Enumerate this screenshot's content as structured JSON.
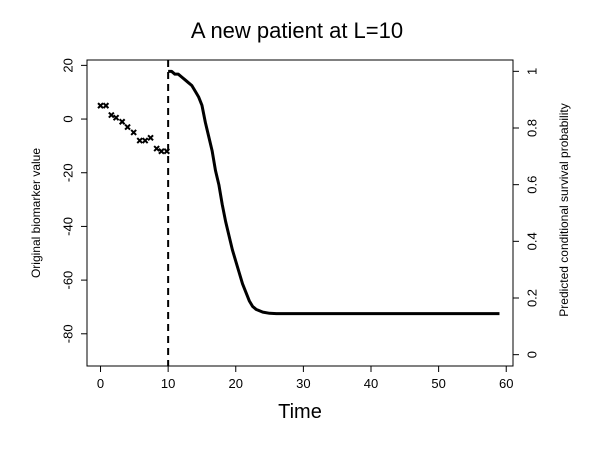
{
  "chart_data": {
    "type": "scatter",
    "title": "A new patient at L=10",
    "xlabel": "Time",
    "ylabel": "Original biomarker value",
    "ylabel_right": "Predicted conditional survival probability",
    "xlim": [
      -2,
      61
    ],
    "ylim": [
      -92,
      22
    ],
    "ylim_right": [
      -0.04,
      1.04
    ],
    "xticks": [
      0,
      10,
      20,
      30,
      40,
      50,
      60
    ],
    "yticks": [
      20,
      0,
      -20,
      -40,
      -60,
      -80
    ],
    "yticks_right": [
      0,
      0.2,
      0.4,
      0.6,
      0.8,
      1
    ],
    "landmark_time": 10,
    "series": [
      {
        "name": "Original biomarker value",
        "axis": "left",
        "style": "points",
        "x": [
          0,
          0.8,
          1.6,
          2.3,
          3.2,
          4,
          4.9,
          5.8,
          6.6,
          7.4,
          8.3,
          9,
          9.8
        ],
        "y": [
          5,
          5,
          1.5,
          0.5,
          -1,
          -3,
          -5,
          -8,
          -8,
          -7,
          -11,
          -12,
          -12
        ]
      },
      {
        "name": "Predicted conditional survival probability",
        "axis": "right",
        "style": "line",
        "x": [
          10,
          10.5,
          11,
          11.5,
          12,
          12.5,
          13,
          13.5,
          14,
          14.5,
          15,
          15.5,
          16,
          16.5,
          17,
          17.5,
          18,
          18.5,
          19,
          19.5,
          20,
          20.5,
          21,
          21.5,
          22,
          22.5,
          23,
          24,
          25,
          26,
          30,
          40,
          50,
          59
        ],
        "y": [
          1.0,
          1.0,
          0.99,
          0.99,
          0.98,
          0.97,
          0.96,
          0.95,
          0.93,
          0.91,
          0.88,
          0.82,
          0.77,
          0.72,
          0.65,
          0.6,
          0.53,
          0.47,
          0.42,
          0.37,
          0.33,
          0.29,
          0.25,
          0.22,
          0.19,
          0.17,
          0.16,
          0.15,
          0.146,
          0.145,
          0.145,
          0.145,
          0.145,
          0.145
        ]
      }
    ]
  }
}
